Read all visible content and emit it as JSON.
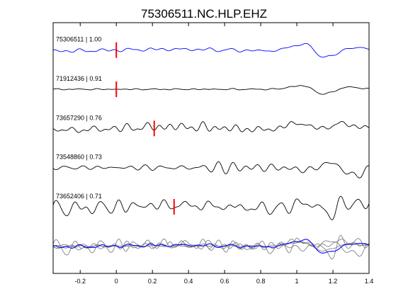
{
  "chart_data": {
    "type": "line",
    "title": "75306511.NC.HLP.EHZ",
    "xlabel": "",
    "ylabel": "",
    "xlim": [
      -0.35,
      1.4
    ],
    "xticks": [
      -0.2,
      0,
      0.2,
      0.4,
      0.6,
      0.8,
      1,
      1.2,
      1.4
    ],
    "xtick_labels": [
      "-0.2",
      "0",
      "0.2",
      "0.4",
      "0.6",
      "0.8",
      "1",
      "1.2",
      "1.4"
    ],
    "colors": {
      "reference": "#0000ff",
      "trace": "#000000",
      "overlay": "#808080",
      "pick": "#ff0000"
    },
    "series": [
      {
        "name": "75306511 | 1.00",
        "label": "75306511 | 1.00",
        "pick": 0.0,
        "offset": 5,
        "wavelets": [
          [
            1.05,
            1.0,
            0.07,
            0.05
          ],
          [
            1.16,
            -1.2,
            0.07,
            0.04
          ],
          [
            1.26,
            0.45,
            0.07,
            0.06
          ]
        ],
        "noise": 0.12,
        "drift": 0.05,
        "seed": 11
      },
      {
        "name": "71912436 | 0.91",
        "label": "71912436 | 0.91",
        "pick": 0.0,
        "offset": 4,
        "wavelets": [
          [
            1.06,
            0.75,
            0.07,
            0.05
          ],
          [
            1.14,
            -1.0,
            0.07,
            0.04
          ],
          [
            1.25,
            0.4,
            0.07,
            0.06
          ]
        ],
        "noise": 0.05,
        "drift": 0.0,
        "seed": 23
      },
      {
        "name": "73657290 | 0.76",
        "label": "73657290 | 0.76",
        "pick": 0.21,
        "offset": 3,
        "wavelets": [
          [
            1.03,
            0.9,
            0.08,
            0.06
          ],
          [
            1.12,
            -0.6,
            0.06,
            0.04
          ],
          [
            1.22,
            0.6,
            0.07,
            0.05
          ]
        ],
        "noise": 0.32,
        "drift": 0.1,
        "seed": 37
      },
      {
        "name": "73548860 | 0.73",
        "label": "73548860 | 0.73",
        "pick": null,
        "offset": 2,
        "wavelets": [
          [
            1.07,
            -0.3,
            0.07,
            0.05
          ],
          [
            1.2,
            0.8,
            0.06,
            0.04
          ],
          [
            1.3,
            -1.0,
            0.06,
            0.04
          ]
        ],
        "noise": 0.25,
        "drift": 0.0,
        "seed": 51
      },
      {
        "name": "73652406 | 0.71",
        "label": "73652406 | 0.71",
        "pick": 0.32,
        "offset": 1,
        "wavelets": [
          [
            1.08,
            0.9,
            0.07,
            0.05
          ],
          [
            1.16,
            -1.1,
            0.06,
            0.04
          ],
          [
            1.28,
            0.5,
            0.07,
            0.05
          ]
        ],
        "noise": 0.45,
        "drift": 0.1,
        "seed": 67
      }
    ],
    "ylim": [
      -0.7,
      5.7
    ]
  }
}
